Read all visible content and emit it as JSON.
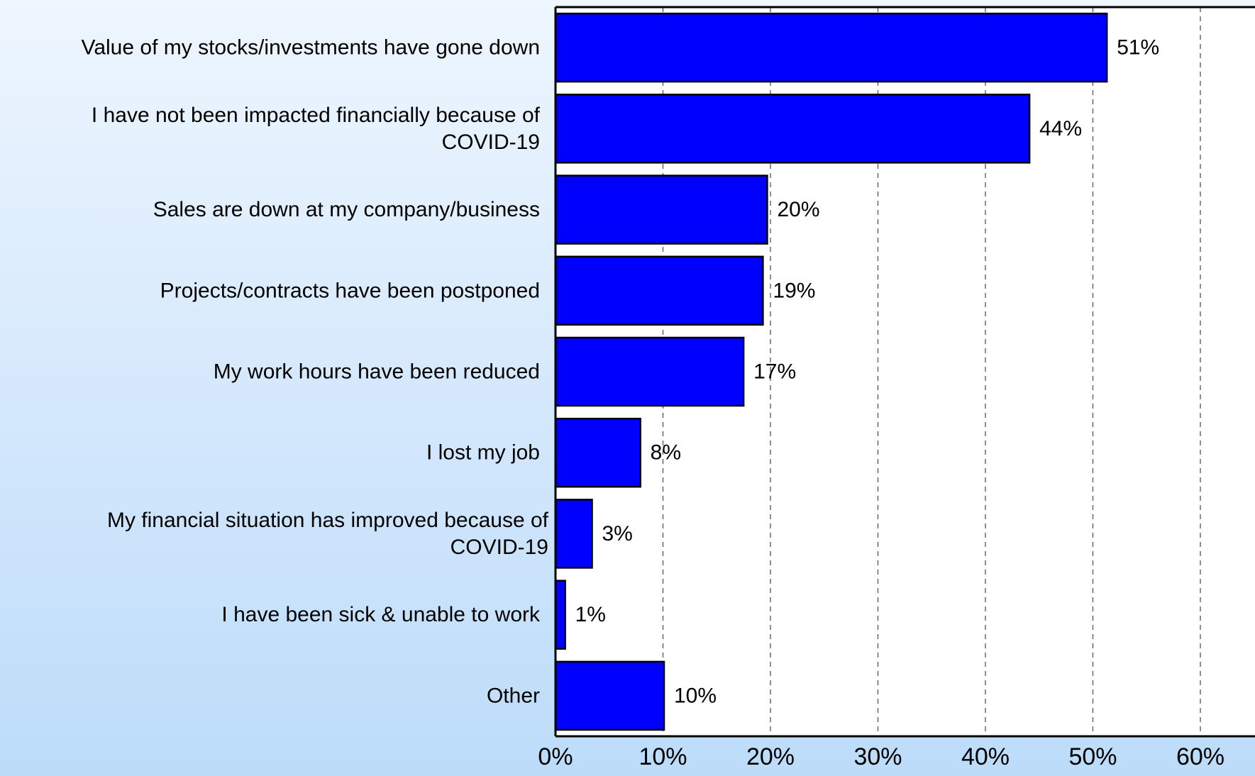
{
  "chart_data": {
    "type": "bar",
    "orientation": "horizontal",
    "categories": [
      "Value of my stocks/investments have gone down",
      "I have not been impacted financially because of COVID-19",
      "Sales are down at my company/business",
      "Projects/contracts have been postponed",
      "My work hours have been reduced",
      "I lost my job",
      "My financial situation has improved because of COVID-19",
      "I have been sick & unable to work",
      "Other"
    ],
    "category_lines": [
      [
        "Value of my stocks/investments have gone down"
      ],
      [
        "I have not been impacted financially because of",
        "COVID-19"
      ],
      [
        "Sales are down at my company/business"
      ],
      [
        "Projects/contracts have been postponed"
      ],
      [
        "My work hours have been reduced"
      ],
      [
        "I lost my job"
      ],
      [
        "My financial situation has improved because of",
        "COVID-19"
      ],
      [
        "I have been sick & unable to work"
      ],
      [
        "Other"
      ]
    ],
    "values": [
      51.3,
      44.1,
      19.7,
      19.3,
      17.5,
      7.9,
      3.4,
      0.9,
      10.1
    ],
    "value_labels": [
      "51%",
      "44%",
      "20%",
      "19%",
      "17%",
      "8%",
      "3%",
      "1%",
      "10%"
    ],
    "xlim": [
      0,
      65
    ],
    "x_ticks": [
      0,
      10,
      20,
      30,
      40,
      50,
      60
    ],
    "x_tick_labels": [
      "0%",
      "10%",
      "20%",
      "30%",
      "40%",
      "50%",
      "60%"
    ],
    "grid": "vertical dashed",
    "title": "",
    "xlabel": "",
    "ylabel": "",
    "colors": {
      "bar_fill": "#0000ff",
      "bar_stroke": "#000000",
      "plot_background": "#ffffff",
      "grid": "#555555"
    }
  }
}
